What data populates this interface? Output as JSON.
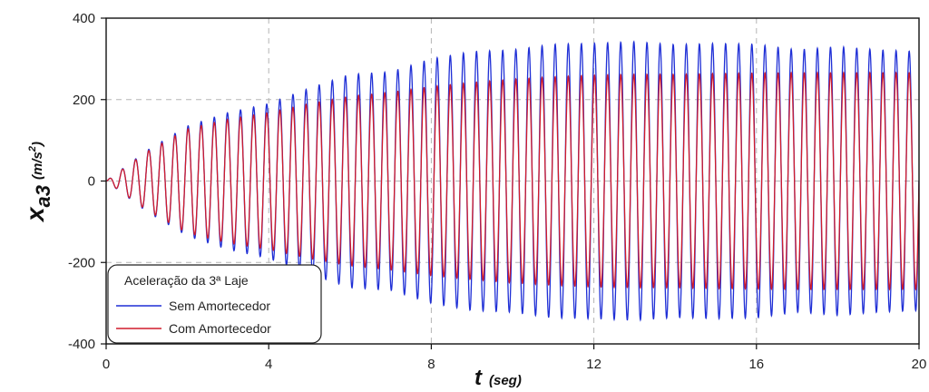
{
  "chart_data": {
    "type": "line",
    "title": "",
    "xlabel": {
      "main": "t",
      "unit": "(seg)"
    },
    "ylabel": {
      "main": "x",
      "sub": "a3",
      "unit_base": "(m/s",
      "unit_exp": "2",
      "unit_close": ")"
    },
    "xlim": [
      0,
      20
    ],
    "ylim": [
      -400,
      400
    ],
    "xticks": [
      0,
      4,
      8,
      12,
      16,
      20
    ],
    "yticks": [
      -400,
      -200,
      0,
      200,
      400
    ],
    "grid": true,
    "legend_position": "bottom-left",
    "legend_title": "Aceleração da 3ª Laje",
    "oscillation_frequency_hz": 3.1,
    "series": [
      {
        "name": "Sem Amortecedor",
        "color": "#1f2fd6",
        "envelope": {
          "t": [
            0,
            1,
            2,
            3,
            4,
            5,
            6,
            7,
            8,
            9,
            10,
            11,
            12,
            13,
            14,
            15,
            16,
            17,
            18,
            19,
            20
          ],
          "amplitude": [
            0,
            75,
            135,
            168,
            190,
            228,
            262,
            268,
            300,
            318,
            322,
            336,
            338,
            342,
            335,
            338,
            336,
            322,
            330,
            322,
            318
          ]
        }
      },
      {
        "name": "Com Amortecedor",
        "color": "#d01c2c",
        "envelope": {
          "t": [
            0,
            1,
            2,
            3,
            4,
            5,
            6,
            7,
            8,
            9,
            10,
            11,
            12,
            13,
            14,
            15,
            16,
            17,
            18,
            19,
            20
          ],
          "amplitude": [
            0,
            72,
            128,
            152,
            168,
            190,
            208,
            218,
            232,
            242,
            250,
            256,
            260,
            262,
            262,
            264,
            265,
            266,
            266,
            266,
            266
          ]
        }
      }
    ]
  }
}
